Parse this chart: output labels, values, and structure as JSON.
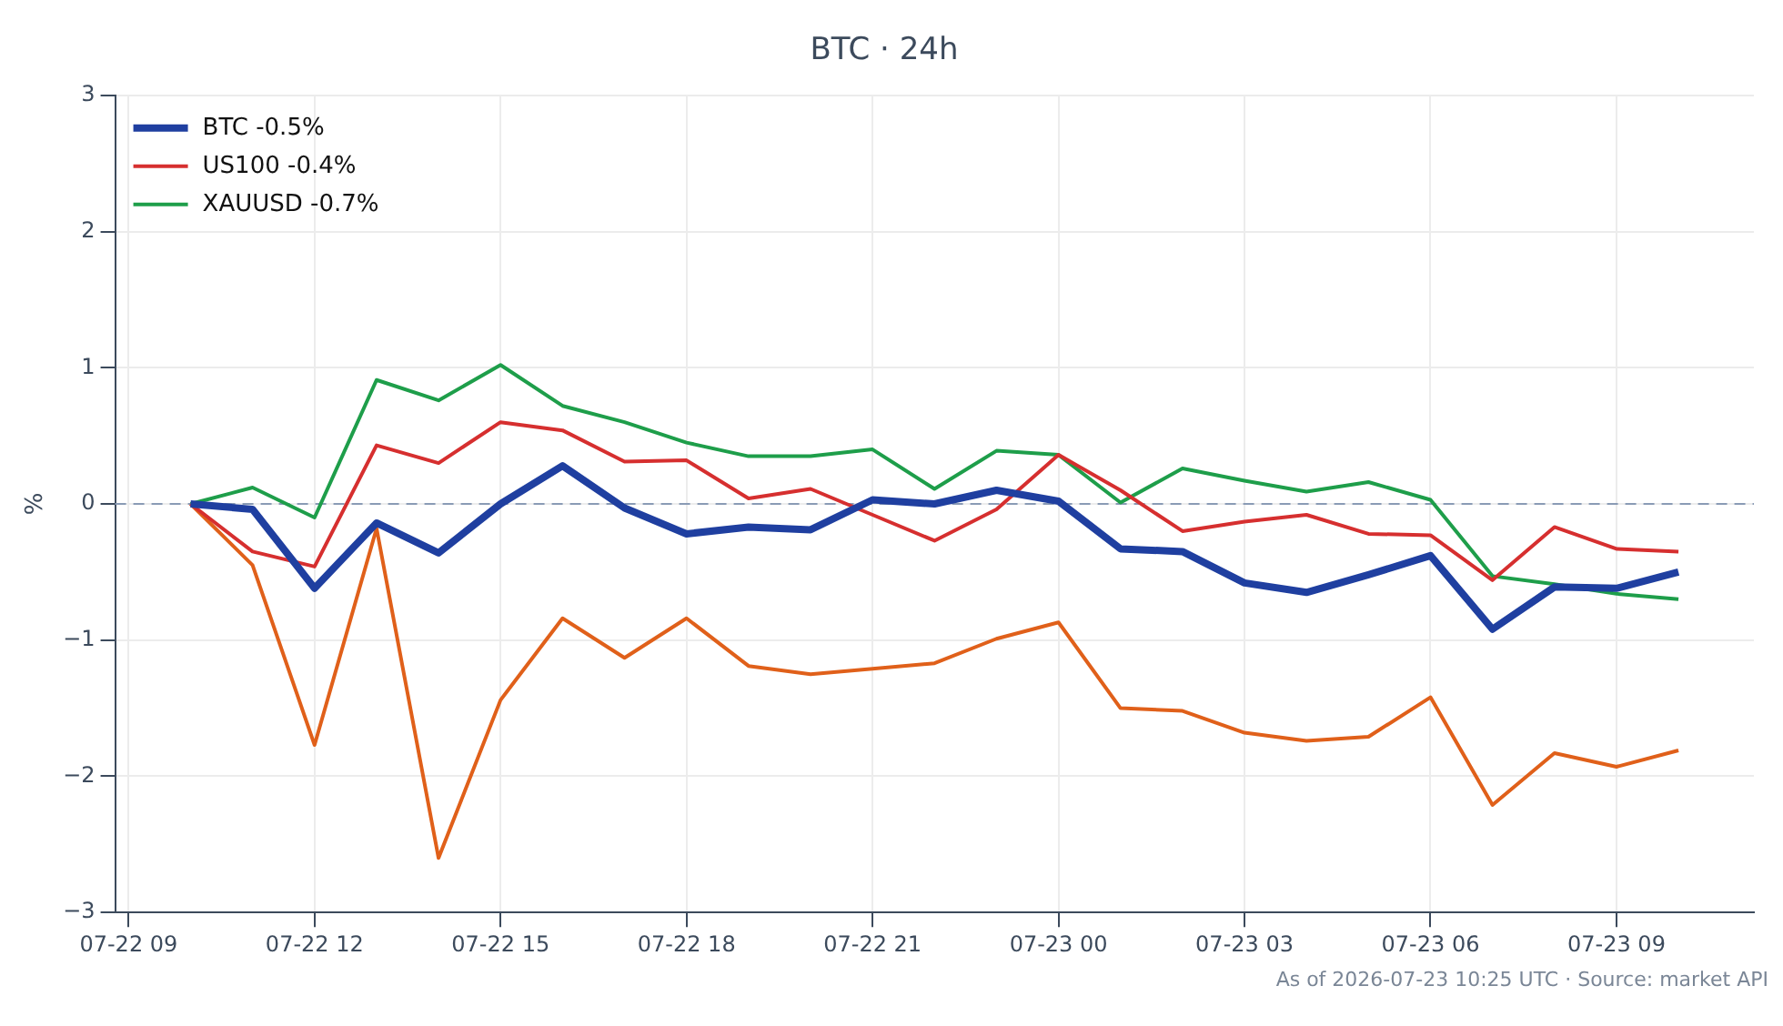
{
  "chart_data": {
    "type": "line",
    "title": "BTC · 24h",
    "ylabel": "%",
    "annotations": [
      "As of 2026-07-23 10:25 UTC · Source: market API"
    ],
    "x": [
      "2026-07-22T10:00",
      "2026-07-22T11:00",
      "2026-07-22T12:00",
      "2026-07-22T13:00",
      "2026-07-22T14:00",
      "2026-07-22T15:00",
      "2026-07-22T16:00",
      "2026-07-22T17:00",
      "2026-07-22T18:00",
      "2026-07-22T19:00",
      "2026-07-22T20:00",
      "2026-07-22T21:00",
      "2026-07-22T22:00",
      "2026-07-22T23:00",
      "2026-07-23T00:00",
      "2026-07-23T01:00",
      "2026-07-23T02:00",
      "2026-07-23T03:00",
      "2026-07-23T04:00",
      "2026-07-23T05:00",
      "2026-07-23T06:00",
      "2026-07-23T07:00",
      "2026-07-23T08:00",
      "2026-07-23T09:00",
      "2026-07-23T10:00"
    ],
    "series": [
      {
        "name": "BTC -0.5%",
        "color": "#1f3fa0",
        "values": [
          0,
          -0.04,
          -0.62,
          -0.14,
          -0.36,
          0,
          0.28,
          -0.03,
          -0.22,
          -0.17,
          -0.19,
          0.03,
          0,
          0.1,
          0.02,
          -0.33,
          -0.35,
          -0.58,
          -0.65,
          -0.52,
          -0.38,
          -0.92,
          -0.61,
          -0.62,
          -0.5
        ]
      },
      {
        "name": "US100 -0.4%",
        "color": "#d62f2f",
        "values": [
          0,
          -0.35,
          -0.46,
          0.43,
          0.3,
          0.6,
          0.54,
          0.31,
          0.32,
          0.04,
          0.11,
          -0.08,
          -0.27,
          -0.04,
          0.36,
          0.1,
          -0.2,
          -0.13,
          -0.08,
          -0.22,
          -0.23,
          -0.56,
          -0.17,
          -0.33,
          -0.35
        ]
      },
      {
        "name": "XAUUSD -0.7%",
        "color": "#1e9e4a",
        "values": [
          0,
          0.12,
          -0.1,
          0.91,
          0.76,
          1.02,
          0.72,
          0.6,
          0.45,
          0.35,
          0.35,
          0.4,
          0.11,
          0.39,
          0.36,
          0.01,
          0.26,
          0.17,
          0.09,
          0.16,
          0.03,
          -0.53,
          -0.59,
          -0.66,
          -0.7
        ]
      },
      {
        "color": "#e0601a",
        "values": [
          0,
          -0.45,
          -1.77,
          -0.18,
          -2.6,
          -1.44,
          -0.84,
          -1.13,
          -0.84,
          -1.19,
          -1.25,
          -1.21,
          -1.17,
          -0.99,
          -0.87,
          -1.5,
          -1.52,
          -1.68,
          -1.74,
          -1.71,
          -1.42,
          -2.21,
          -1.83,
          -1.93,
          -1.81
        ]
      }
    ],
    "xlim": [
      "2026-07-22T08:47",
      "2026-07-23T11:13"
    ],
    "xticks": [
      {
        "value": "2026-07-22T09:00",
        "label": "07-22 09"
      },
      {
        "value": "2026-07-22T12:00",
        "label": "07-22 12"
      },
      {
        "value": "2026-07-22T15:00",
        "label": "07-22 15"
      },
      {
        "value": "2026-07-22T18:00",
        "label": "07-22 18"
      },
      {
        "value": "2026-07-22T21:00",
        "label": "07-22 21"
      },
      {
        "value": "2026-07-23T00:00",
        "label": "07-23 00"
      },
      {
        "value": "2026-07-23T03:00",
        "label": "07-23 03"
      },
      {
        "value": "2026-07-23T06:00",
        "label": "07-23 06"
      },
      {
        "value": "2026-07-23T09:00",
        "label": "07-23 09"
      }
    ],
    "ylim": [
      -3,
      3
    ],
    "yticks": [
      {
        "value": -3,
        "label": "−3"
      },
      {
        "value": -2,
        "label": "−2"
      },
      {
        "value": -1,
        "label": "−1"
      },
      0,
      1,
      2,
      3
    ],
    "ref_lines": [
      {
        "axis": "y",
        "value": 0,
        "color": "#8a9bb5",
        "line_style": "dashed"
      }
    ],
    "grid": true,
    "legend": "top left",
    "marker": "none",
    "line_style": "solid"
  }
}
